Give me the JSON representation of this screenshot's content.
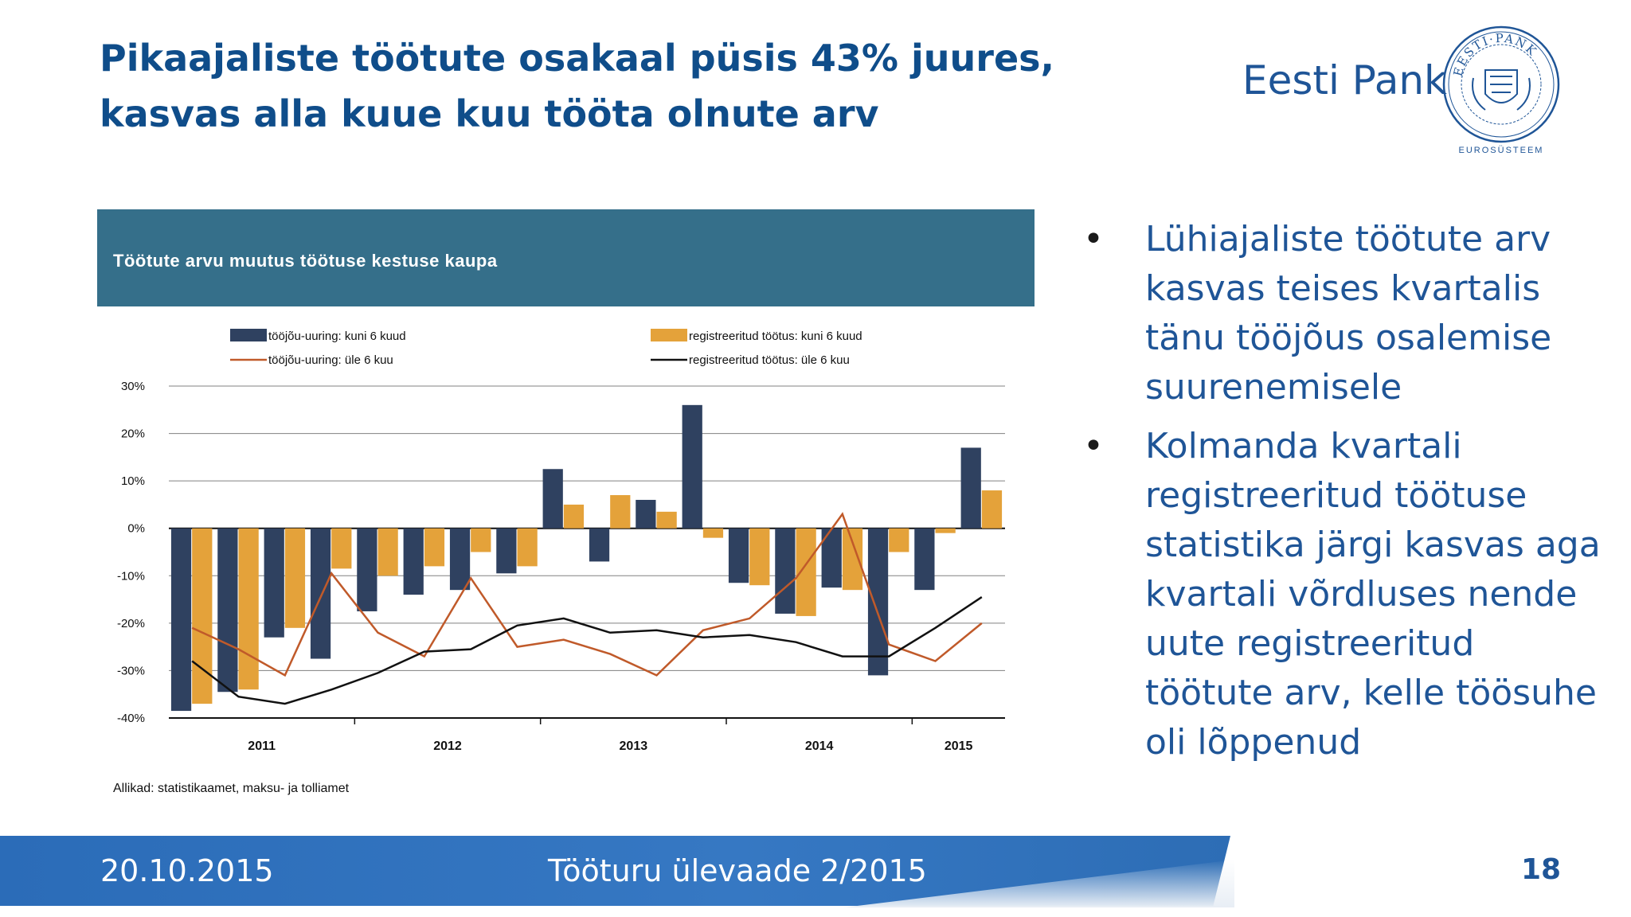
{
  "slide": {
    "title_line1": "Pikaajaliste töötute osakaal püsis 43% juures,",
    "title_line2": "kasvas alla kuue kuu tööta olnute arv"
  },
  "brand": {
    "name": "Eesti Pank",
    "seal_top_text": "EESTI·PANK",
    "seal_bottom_text": "EUROSÜSTEEM"
  },
  "chart_header": {
    "title": "Töötute arvu muutus töötuse kestuse kaupa"
  },
  "chart_data": {
    "type": "bar",
    "colors": {
      "bar1": "#2f4160",
      "bar2": "#e4a23a",
      "line1": "#c05a2a",
      "line2": "#111111",
      "grid": "#808080"
    },
    "legend_position": "top",
    "grid": true,
    "ylim": [
      -40,
      30
    ],
    "yticks": [
      30,
      20,
      10,
      0,
      -10,
      -20,
      -30,
      -40
    ],
    "ytick_labels": [
      "30%",
      "20%",
      "10%",
      "0%",
      "-10%",
      "-20%",
      "-30%",
      "-40%"
    ],
    "year_labels": [
      "2011",
      "2012",
      "2013",
      "2014",
      "2015"
    ],
    "quarters": [
      "2011 Q1",
      "2011 Q2",
      "2011 Q3",
      "2011 Q4",
      "2012 Q1",
      "2012 Q2",
      "2012 Q3",
      "2012 Q4",
      "2013 Q1",
      "2013 Q2",
      "2013 Q3",
      "2013 Q4",
      "2014 Q1",
      "2014 Q2",
      "2014 Q3",
      "2014 Q4",
      "2015 Q1",
      "2015 Q2"
    ],
    "series": [
      {
        "name": "tööjõu-uuring: kuni 6 kuud",
        "kind": "bar",
        "values": [
          -38.5,
          -34.5,
          -23,
          -27.5,
          -17.5,
          -14,
          -13,
          -9.5,
          12.5,
          -7,
          6,
          26,
          -11.5,
          -18,
          -12.5,
          -31,
          -13,
          17
        ]
      },
      {
        "name": "registreeritud töötus: kuni 6 kuud",
        "kind": "bar",
        "values": [
          -37,
          -34,
          -21,
          -8.5,
          -10,
          -8,
          -5,
          -8,
          5,
          7,
          3.5,
          -2,
          -12,
          -18.5,
          -13,
          -5,
          -1,
          8
        ]
      },
      {
        "name": "tööjõu-uuring: üle 6 kuu",
        "kind": "line",
        "values": [
          -21,
          -25.5,
          -31,
          -9.5,
          -22,
          -27,
          -10.5,
          -25,
          -23.5,
          -26.5,
          -31,
          -21.5,
          -19,
          -10.5,
          3,
          -24.5,
          -28,
          -20
        ]
      },
      {
        "name": "registreeritud töötus: üle 6 kuu",
        "kind": "line",
        "values": [
          -28,
          -35.5,
          -37,
          -34,
          -30.5,
          -26,
          -25.5,
          -20.5,
          -19,
          -22,
          -21.5,
          -23,
          -22.5,
          -24,
          -27,
          -27,
          -21,
          -14.5
        ]
      }
    ],
    "source": "Allikad: statistikaamet, maksu- ja tolliamet"
  },
  "bullets": [
    "Lühiajaliste töötute arv kasvas teises kvartalis tänu tööjõus osalemise suurenemisele",
    "Kolmanda kvartali registreeritud töötuse statistika järgi kasvas aga kvartali võrdluses nende uute registreeritud töötute arv, kelle töösuhe oli lõppenud"
  ],
  "footer": {
    "date": "20.10.2015",
    "center_text": "Tööturu ülevaade 2/2015",
    "page_number": "18"
  }
}
